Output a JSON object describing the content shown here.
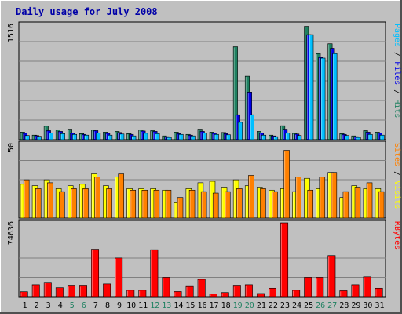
{
  "chart_data": [
    {
      "type": "bar",
      "title": "Daily usage for July 2008",
      "categories": [
        "1",
        "2",
        "3",
        "4",
        "5",
        "6",
        "7",
        "8",
        "9",
        "10",
        "11",
        "12",
        "13",
        "14",
        "15",
        "16",
        "17",
        "18",
        "19",
        "20",
        "21",
        "22",
        "23",
        "24",
        "25",
        "26",
        "27",
        "28",
        "29",
        "30",
        "31"
      ],
      "weekend_days": [
        "5",
        "6",
        "12",
        "13",
        "19",
        "20",
        "26",
        "27"
      ],
      "ylim": [
        0,
        1516
      ],
      "ytick_label": "1516",
      "ylabel_parts": [
        "Pages",
        " / ",
        "Files",
        " / ",
        "Hits"
      ],
      "series": [
        {
          "name": "Hits",
          "color": "#1e8060",
          "values": [
            100,
            60,
            180,
            130,
            140,
            80,
            130,
            100,
            110,
            80,
            130,
            120,
            50,
            100,
            70,
            140,
            100,
            95,
            1230,
            840,
            110,
            60,
            185,
            85,
            1500,
            1140,
            1270,
            80,
            50,
            120,
            100
          ]
        },
        {
          "name": "Files",
          "color": "#0000e6",
          "values": [
            85,
            55,
            120,
            110,
            90,
            70,
            120,
            85,
            95,
            70,
            115,
            110,
            40,
            80,
            60,
            110,
            85,
            80,
            330,
            630,
            90,
            50,
            140,
            75,
            1390,
            1090,
            1210,
            70,
            40,
            100,
            90
          ]
        },
        {
          "name": "Pages",
          "color": "#00bfff",
          "values": [
            55,
            45,
            90,
            80,
            70,
            60,
            90,
            60,
            75,
            50,
            85,
            80,
            30,
            70,
            50,
            90,
            70,
            65,
            230,
            330,
            60,
            40,
            90,
            55,
            1390,
            1080,
            1140,
            55,
            30,
            70,
            60
          ]
        }
      ]
    },
    {
      "type": "bar",
      "ylim": [
        0,
        50
      ],
      "ytick_label": "50",
      "ylabel_parts": [
        "Sites",
        " / ",
        "Visits"
      ],
      "series": [
        {
          "name": "Visits",
          "color": "#ffff00",
          "values": [
            23,
            22,
            26,
            20,
            22,
            23,
            30,
            22,
            28,
            20,
            20,
            20,
            19,
            11,
            20,
            24,
            25,
            21,
            26,
            22,
            21,
            19,
            20,
            18,
            27,
            20,
            31,
            14,
            22,
            20,
            20
          ]
        },
        {
          "name": "Sites",
          "color": "#ff8000",
          "values": [
            26,
            20,
            24,
            18,
            20,
            20,
            28,
            20,
            30,
            19,
            19,
            19,
            19,
            14,
            19,
            18,
            17,
            18,
            20,
            29,
            20,
            18,
            46,
            28,
            19,
            28,
            31,
            18,
            21,
            24,
            18
          ]
        }
      ]
    },
    {
      "type": "bar",
      "ylim": [
        0,
        74636
      ],
      "ytick_label": "74636",
      "ylabel_parts": [
        "KBytes"
      ],
      "series": [
        {
          "name": "KBytes",
          "color": "#ff0000",
          "values": [
            5000,
            12000,
            14500,
            9000,
            11500,
            11500,
            48000,
            12800,
            39000,
            6500,
            6500,
            47500,
            19500,
            5200,
            11000,
            17500,
            2800,
            4200,
            11500,
            12000,
            3200,
            8500,
            74636,
            6500,
            19500,
            19500,
            41500,
            6000,
            12000,
            20000,
            8500
          ]
        }
      ]
    }
  ],
  "colors": {
    "title": "#0000a8",
    "panel_bg": "#c0c0c0",
    "frame_bg": "#c0c0c0",
    "grid": "#808080",
    "day_label": "#000000",
    "weekend_label": "#1e8060"
  }
}
